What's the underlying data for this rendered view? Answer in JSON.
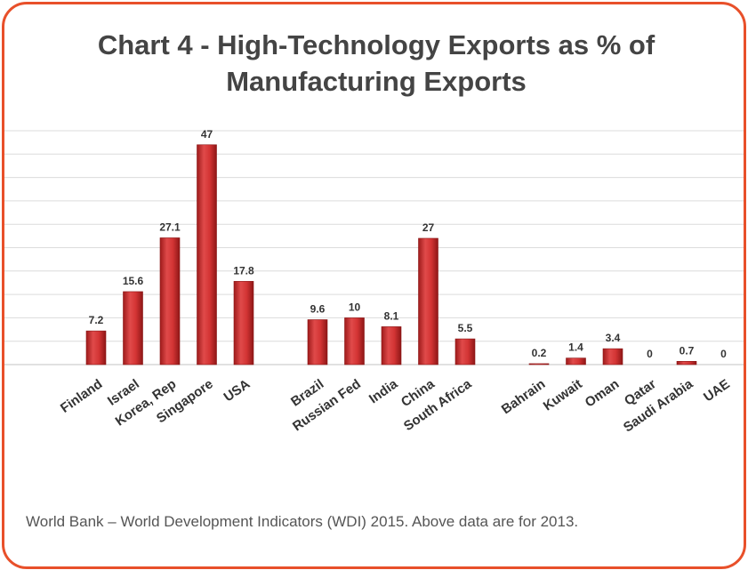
{
  "chart_data": {
    "type": "bar",
    "title": "Chart 4 - High-Technology Exports as % of Manufacturing Exports",
    "title_lines": [
      "Chart 4 - High-Technology Exports as % of",
      "Manufacturing Exports"
    ],
    "groups": [
      {
        "categories": [
          "Finland",
          "Israel",
          "Korea, Rep",
          "Singapore",
          "USA"
        ],
        "values": [
          7.2,
          15.6,
          27.1,
          47,
          17.8
        ],
        "labels": [
          "7.2",
          "15.6",
          "27.1",
          "47",
          "17.8"
        ]
      },
      {
        "categories": [
          "Brazil",
          "Russian Fed",
          "India",
          "China",
          "South Africa"
        ],
        "values": [
          9.6,
          10,
          8.1,
          27,
          5.5
        ],
        "labels": [
          "9.6",
          "10",
          "8.1",
          "27",
          "5.5"
        ]
      },
      {
        "categories": [
          "Bahrain",
          "Kuwait",
          "Oman",
          "Qatar",
          "Saudi Arabia",
          "UAE"
        ],
        "values": [
          0.2,
          1.4,
          3.4,
          0,
          0.7,
          0
        ],
        "labels": [
          "0.2",
          "1.4",
          "3.4",
          "0",
          "0.7",
          "0"
        ]
      }
    ],
    "ylim": [
      0,
      50
    ],
    "grid": true,
    "bar_color": "#C62828"
  },
  "source_text": "World Bank – World Development Indicators (WDI) 2015. Above data are for 2013.",
  "colors": {
    "border": "#E8502A",
    "bar": "#C62828"
  }
}
